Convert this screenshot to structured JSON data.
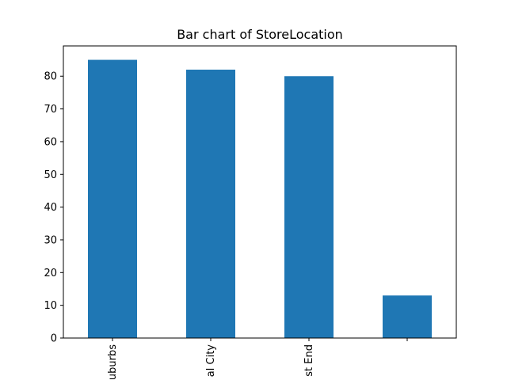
{
  "chart_data": {
    "type": "bar",
    "title": "Bar chart of StoreLocation",
    "xlabel": "",
    "ylabel": "",
    "categories": [
      "uburbs",
      "al City",
      "st End",
      ""
    ],
    "values": [
      85,
      82,
      80,
      13
    ],
    "ylim": [
      0,
      89.25
    ],
    "yticks": [
      0,
      10,
      20,
      30,
      40,
      50,
      60,
      70,
      80
    ],
    "bar_color": "#1f77b4",
    "grid": false,
    "legend": "none"
  }
}
